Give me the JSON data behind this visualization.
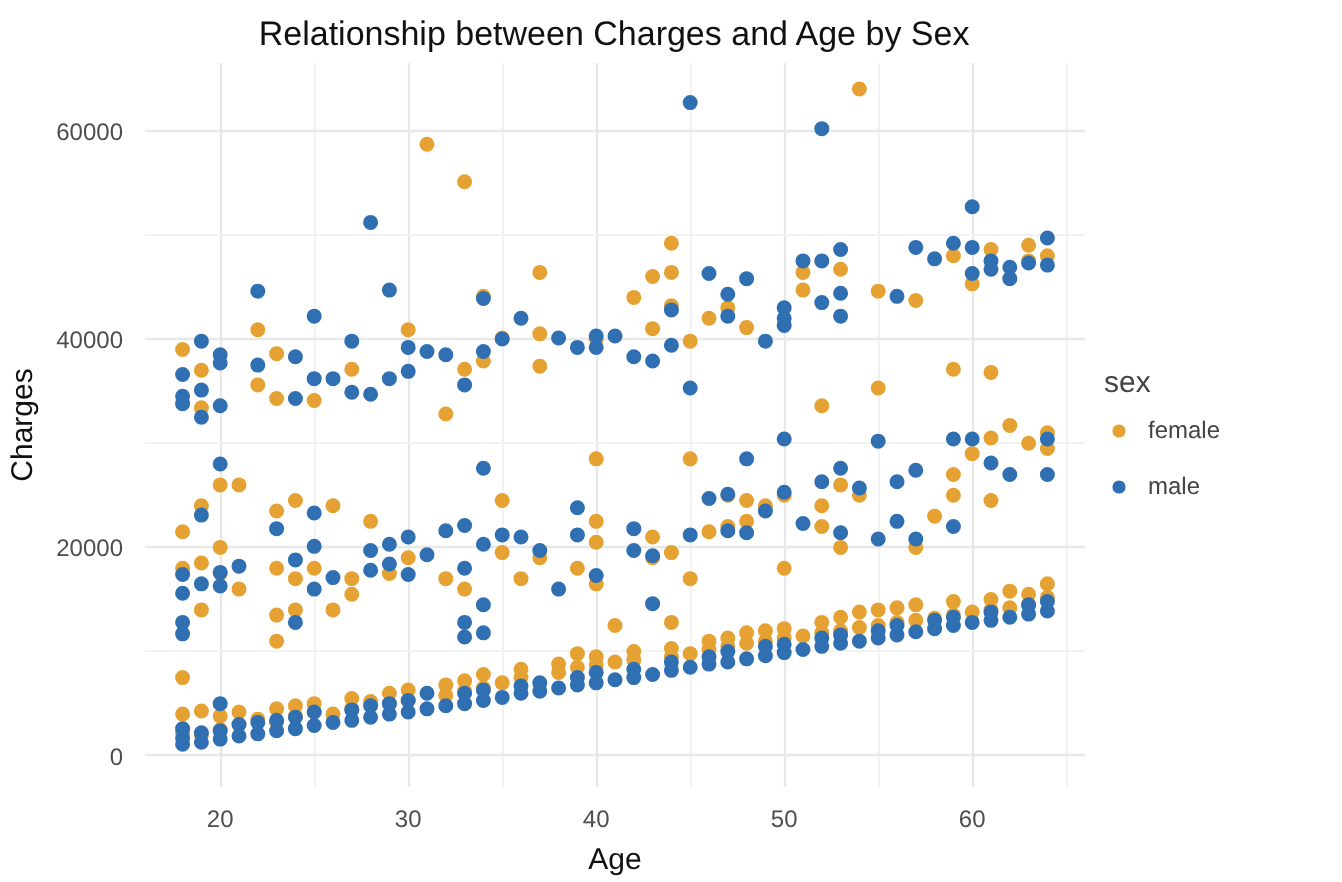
{
  "chart_data": {
    "type": "scatter",
    "title": "Relationship between Charges and Age by Sex",
    "xlabel": "Age",
    "ylabel": "Charges",
    "legend_title": "sex",
    "legend": "right",
    "grid": true,
    "marker": "circle",
    "xlim": [
      16,
      66
    ],
    "xticks": [
      20,
      {
        "value": 25,
        "label": null
      },
      30,
      {
        "value": 35,
        "label": null
      },
      40,
      {
        "value": 45,
        "label": null
      },
      50,
      {
        "value": 55,
        "label": null
      },
      60,
      {
        "value": 65,
        "label": null
      }
    ],
    "ylim": [
      -3000,
      66500
    ],
    "yticks": [
      0,
      {
        "value": 10000,
        "label": null
      },
      20000,
      {
        "value": 30000,
        "label": null
      },
      40000,
      {
        "value": 50000,
        "label": null
      },
      60000
    ],
    "series": [
      {
        "name": "female",
        "color": "#e5a233",
        "x": [
          18,
          18,
          18,
          19,
          19,
          20,
          20,
          21,
          21,
          22,
          23,
          23,
          24,
          24,
          25,
          25,
          26,
          27,
          27,
          28,
          29,
          29,
          30,
          30,
          32,
          32,
          33,
          33,
          34,
          34,
          35,
          36,
          36,
          38,
          38,
          39,
          39,
          40,
          40,
          41,
          42,
          42,
          44,
          44,
          45,
          46,
          46,
          47,
          47,
          48,
          48,
          49,
          49,
          50,
          50,
          51,
          52,
          52,
          53,
          53,
          54,
          54,
          55,
          55,
          56,
          56,
          57,
          57,
          58,
          59,
          59,
          60,
          61,
          61,
          62,
          62,
          63,
          63,
          64,
          64,
          18,
          18,
          19,
          19,
          19,
          20,
          20,
          20,
          21,
          21,
          23,
          23,
          23,
          23,
          24,
          24,
          24,
          25,
          26,
          26,
          27,
          27,
          28,
          29,
          30,
          32,
          33,
          35,
          35,
          36,
          37,
          39,
          40,
          40,
          40,
          40,
          41,
          43,
          43,
          44,
          44,
          45,
          45,
          46,
          47,
          47,
          48,
          48,
          49,
          50,
          50,
          52,
          52,
          52,
          53,
          53,
          54,
          55,
          57,
          58,
          59,
          59,
          59,
          60,
          61,
          61,
          61,
          62,
          63,
          64,
          64,
          18,
          19,
          19,
          22,
          22,
          23,
          23,
          25,
          27,
          30,
          31,
          32,
          33,
          33,
          34,
          34,
          35,
          37,
          37,
          37,
          40,
          42,
          43,
          43,
          44,
          44,
          44,
          45,
          46,
          47,
          48,
          51,
          51,
          53,
          54,
          55,
          57,
          59,
          60,
          61,
          63,
          63,
          64
        ],
        "values": [
          2200,
          4000,
          7500,
          2000,
          4300,
          2500,
          3800,
          3000,
          4200,
          3500,
          3200,
          4500,
          3800,
          4800,
          4200,
          5000,
          4000,
          4500,
          5500,
          5200,
          5000,
          6000,
          5300,
          6300,
          5800,
          6800,
          6200,
          7200,
          6500,
          7800,
          7000,
          7500,
          8300,
          8000,
          8800,
          8500,
          9800,
          8700,
          9500,
          9000,
          9200,
          10000,
          9500,
          10300,
          9800,
          10200,
          11000,
          10500,
          11300,
          10800,
          11800,
          11000,
          12000,
          11300,
          12200,
          11500,
          11800,
          12800,
          12000,
          13300,
          12300,
          13800,
          12500,
          14000,
          12800,
          14200,
          13000,
          14500,
          13200,
          13500,
          14800,
          13800,
          14000,
          15000,
          14200,
          15800,
          14500,
          15500,
          15200,
          16500,
          21500,
          18000,
          24000,
          18500,
          14000,
          26000,
          20000,
          17500,
          26000,
          16000,
          23500,
          18000,
          13500,
          11000,
          24500,
          17000,
          14000,
          18000,
          24000,
          14000,
          17000,
          15500,
          22500,
          17500,
          19000,
          17000,
          16000,
          24500,
          19500,
          17000,
          19000,
          18000,
          28500,
          22500,
          20500,
          16500,
          12500,
          21000,
          19000,
          12800,
          19500,
          28500,
          17000,
          21500,
          25000,
          22000,
          24500,
          22500,
          24000,
          18000,
          25000,
          33600,
          24000,
          22000,
          26000,
          20000,
          25000,
          35300,
          20000,
          23000,
          37100,
          25000,
          27000,
          29000,
          36800,
          30500,
          24500,
          31700,
          30000,
          31000,
          29500,
          39000,
          37000,
          33400,
          40900,
          35600,
          38600,
          34300,
          34100,
          37100,
          40900,
          58700,
          32800,
          55100,
          37100,
          44100,
          37900,
          40100,
          46400,
          40500,
          37400,
          40000,
          44000,
          46000,
          41000,
          49200,
          46400,
          43200,
          39800,
          42000,
          43000,
          41100,
          46400,
          44700,
          46700,
          64000,
          44600,
          43700,
          48000,
          45300,
          48600,
          49000,
          47500,
          48000
        ]
      },
      {
        "name": "male",
        "color": "#2f6fb2",
        "x": [
          18,
          18,
          18,
          19,
          19,
          20,
          20,
          20,
          21,
          21,
          22,
          22,
          23,
          23,
          24,
          24,
          25,
          25,
          26,
          27,
          27,
          28,
          28,
          29,
          29,
          30,
          30,
          31,
          31,
          32,
          33,
          33,
          34,
          34,
          35,
          36,
          36,
          37,
          37,
          38,
          39,
          39,
          40,
          40,
          41,
          42,
          42,
          43,
          44,
          44,
          45,
          46,
          46,
          47,
          47,
          48,
          49,
          49,
          50,
          50,
          51,
          52,
          52,
          53,
          53,
          54,
          55,
          55,
          56,
          56,
          57,
          58,
          58,
          59,
          59,
          60,
          61,
          61,
          62,
          63,
          63,
          64,
          64,
          18,
          18,
          18,
          18,
          19,
          19,
          20,
          20,
          20,
          21,
          23,
          24,
          24,
          25,
          25,
          25,
          26,
          28,
          28,
          29,
          29,
          30,
          30,
          31,
          32,
          33,
          33,
          33,
          33,
          34,
          34,
          34,
          34,
          35,
          36,
          37,
          38,
          39,
          39,
          40,
          42,
          42,
          43,
          43,
          45,
          46,
          47,
          47,
          48,
          48,
          49,
          50,
          50,
          51,
          52,
          53,
          53,
          54,
          55,
          55,
          56,
          56,
          57,
          57,
          59,
          59,
          60,
          61,
          62,
          64,
          64,
          18,
          18,
          18,
          19,
          19,
          19,
          20,
          20,
          20,
          22,
          22,
          24,
          24,
          25,
          25,
          26,
          27,
          27,
          28,
          28,
          29,
          29,
          30,
          30,
          31,
          32,
          33,
          34,
          34,
          35,
          36,
          38,
          39,
          40,
          40,
          41,
          42,
          43,
          44,
          44,
          45,
          45,
          46,
          47,
          47,
          48,
          49,
          50,
          50,
          50,
          51,
          52,
          52,
          52,
          53,
          53,
          53,
          56,
          57,
          58,
          59,
          60,
          60,
          60,
          61,
          61,
          62,
          62,
          63,
          64,
          64
        ],
        "values": [
          1100,
          1700,
          2600,
          1300,
          2200,
          1600,
          2400,
          5000,
          1900,
          3000,
          2100,
          3200,
          2400,
          3400,
          2600,
          3700,
          2900,
          4200,
          3200,
          3400,
          4400,
          3700,
          4800,
          4000,
          5000,
          4200,
          5300,
          4500,
          6000,
          4800,
          5000,
          6000,
          5300,
          6300,
          5600,
          6000,
          6700,
          6200,
          7000,
          6500,
          6800,
          7500,
          7000,
          8000,
          7300,
          7500,
          8300,
          7800,
          8200,
          9000,
          8500,
          8800,
          9500,
          9000,
          10000,
          9300,
          9600,
          10500,
          9900,
          10700,
          10200,
          10500,
          11300,
          10800,
          11600,
          11000,
          11300,
          12000,
          11600,
          12500,
          11900,
          12200,
          13000,
          12500,
          13300,
          12800,
          13000,
          13800,
          13300,
          13600,
          14500,
          13900,
          14800,
          17400,
          15600,
          12800,
          11700,
          23100,
          16500,
          28000,
          17600,
          16300,
          18200,
          21800,
          18800,
          12800,
          23300,
          20100,
          16000,
          17100,
          19700,
          17800,
          20300,
          18400,
          21000,
          17400,
          19300,
          21600,
          22100,
          18000,
          12800,
          11400,
          27600,
          20300,
          14500,
          11800,
          21200,
          21000,
          19700,
          16000,
          23800,
          21200,
          17300,
          21800,
          19700,
          19200,
          14600,
          21200,
          24700,
          25100,
          21600,
          28500,
          21400,
          23500,
          30400,
          25300,
          22300,
          26300,
          27600,
          21400,
          25700,
          30200,
          20800,
          26300,
          22500,
          27400,
          20800,
          30400,
          22000,
          30400,
          28100,
          27000,
          30400,
          27000,
          36600,
          34500,
          33800,
          39800,
          35100,
          32500,
          38500,
          37700,
          33600,
          44600,
          37500,
          38300,
          34300,
          42200,
          36200,
          36200,
          39800,
          34900,
          51200,
          34700,
          44700,
          36200,
          39200,
          36900,
          38800,
          38500,
          35600,
          43900,
          38800,
          40000,
          42000,
          40100,
          39200,
          40300,
          39200,
          40300,
          38300,
          37900,
          42800,
          39400,
          62700,
          35300,
          46300,
          44300,
          42200,
          45800,
          39800,
          43000,
          42000,
          41300,
          47500,
          60200,
          47500,
          43500,
          48600,
          44400,
          42200,
          44100,
          48800,
          47700,
          49200,
          52700,
          48800,
          46300,
          47500,
          46700,
          46900,
          45800,
          47300,
          49700,
          47100
        ]
      }
    ]
  }
}
